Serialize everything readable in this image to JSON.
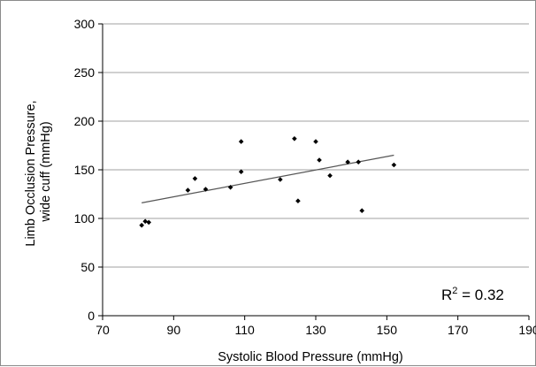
{
  "chart_data": {
    "type": "scatter",
    "xlabel": "Systolic Blood Pressure (mmHg)",
    "ylabel": "Limb Occlusion Pressure, wide cuff (mmHg)",
    "ylabel_lines": [
      "Limb Occlusion Pressure,",
      "wide cuff (mmHg)"
    ],
    "xlim": [
      70,
      190
    ],
    "ylim": [
      0,
      300
    ],
    "x_ticks": [
      70,
      90,
      110,
      130,
      150,
      170,
      190
    ],
    "y_ticks": [
      0,
      50,
      100,
      150,
      200,
      250,
      300
    ],
    "grid": "horizontal",
    "legend": "none",
    "marker_color": "#000000",
    "series": [
      {
        "points": [
          [
            81,
            93
          ],
          [
            82,
            97
          ],
          [
            83,
            96
          ],
          [
            94,
            129
          ],
          [
            96,
            141
          ],
          [
            99,
            130
          ],
          [
            106,
            132
          ],
          [
            109,
            148
          ],
          [
            109,
            179
          ],
          [
            120,
            140
          ],
          [
            124,
            182
          ],
          [
            125,
            118
          ],
          [
            130,
            179
          ],
          [
            131,
            160
          ],
          [
            134,
            144
          ],
          [
            139,
            158
          ],
          [
            142,
            158
          ],
          [
            143,
            108
          ],
          [
            152,
            155
          ]
        ]
      }
    ],
    "trendline": {
      "x": [
        81,
        152
      ],
      "y": [
        116,
        165
      ]
    },
    "annotation": {
      "text": "R",
      "superscript": "2",
      "suffix": " = 0.32",
      "position": "bottom-right"
    }
  }
}
